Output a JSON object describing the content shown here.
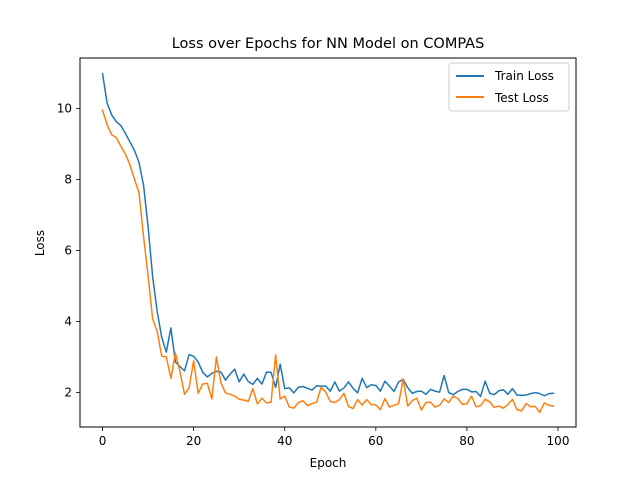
{
  "chart_data": {
    "type": "line",
    "title": "Loss over Epochs for NN Model on COMPAS",
    "xlabel": "Epoch",
    "ylabel": "Loss",
    "xlim": [
      -4.95,
      103.95
    ],
    "ylim": [
      1.03,
      11.42
    ],
    "xticks": [
      0,
      20,
      40,
      60,
      80,
      100
    ],
    "yticks": [
      2,
      4,
      6,
      8,
      10
    ],
    "grid": false,
    "legend_position": "upper right",
    "x": [
      0,
      1,
      2,
      3,
      4,
      5,
      6,
      7,
      8,
      9,
      10,
      11,
      12,
      13,
      14,
      15,
      16,
      17,
      18,
      19,
      20,
      21,
      22,
      23,
      24,
      25,
      26,
      27,
      28,
      29,
      30,
      31,
      32,
      33,
      34,
      35,
      36,
      37,
      38,
      39,
      40,
      41,
      42,
      43,
      44,
      45,
      46,
      47,
      48,
      49,
      50,
      51,
      52,
      53,
      54,
      55,
      56,
      57,
      58,
      59,
      60,
      61,
      62,
      63,
      64,
      65,
      66,
      67,
      68,
      69,
      70,
      71,
      72,
      73,
      74,
      75,
      76,
      77,
      78,
      79,
      80,
      81,
      82,
      83,
      84,
      85,
      86,
      87,
      88,
      89,
      90,
      91,
      92,
      93,
      94,
      95,
      96,
      97,
      98,
      99
    ],
    "series": [
      {
        "name": "Train Loss",
        "color": "#1f77b4",
        "values": [
          10.98,
          10.15,
          9.82,
          9.63,
          9.52,
          9.3,
          9.06,
          8.82,
          8.48,
          7.84,
          6.67,
          5.26,
          4.28,
          3.55,
          3.14,
          3.82,
          2.86,
          2.73,
          2.61,
          3.07,
          3.02,
          2.86,
          2.57,
          2.44,
          2.54,
          2.6,
          2.58,
          2.35,
          2.52,
          2.66,
          2.3,
          2.52,
          2.31,
          2.23,
          2.4,
          2.24,
          2.57,
          2.57,
          2.14,
          2.8,
          2.11,
          2.13,
          1.99,
          2.15,
          2.17,
          2.12,
          2.07,
          2.19,
          2.18,
          2.18,
          2.04,
          2.3,
          2.04,
          2.13,
          2.3,
          2.12,
          1.99,
          2.4,
          2.14,
          2.22,
          2.2,
          2.04,
          2.32,
          2.18,
          2.03,
          2.3,
          2.37,
          2.14,
          1.98,
          2.03,
          2.04,
          1.95,
          2.09,
          2.04,
          2.01,
          2.48,
          2.0,
          1.94,
          2.03,
          2.09,
          2.09,
          2.02,
          2.03,
          1.89,
          2.32,
          1.98,
          1.94,
          2.05,
          2.08,
          1.95,
          2.11,
          1.93,
          1.92,
          1.93,
          1.97,
          2.0,
          1.97,
          1.91,
          1.97,
          1.98
        ]
      },
      {
        "name": "Test Loss",
        "color": "#ff7f0e",
        "values": [
          9.95,
          9.54,
          9.26,
          9.18,
          8.94,
          8.72,
          8.42,
          8.01,
          7.63,
          6.4,
          5.29,
          4.07,
          3.72,
          3.02,
          3.01,
          2.4,
          3.11,
          2.59,
          1.95,
          2.13,
          2.89,
          1.98,
          2.24,
          2.26,
          1.82,
          3.0,
          2.27,
          1.99,
          1.95,
          1.9,
          1.81,
          1.79,
          1.75,
          2.11,
          1.68,
          1.84,
          1.71,
          1.73,
          3.06,
          1.82,
          1.9,
          1.59,
          1.56,
          1.72,
          1.77,
          1.63,
          1.69,
          1.73,
          2.15,
          2.01,
          1.75,
          1.72,
          1.8,
          1.98,
          1.61,
          1.55,
          1.8,
          1.65,
          1.8,
          1.66,
          1.65,
          1.52,
          1.83,
          1.59,
          1.64,
          1.69,
          2.38,
          1.62,
          1.77,
          1.84,
          1.51,
          1.72,
          1.73,
          1.59,
          1.64,
          1.82,
          1.72,
          1.9,
          1.83,
          1.67,
          1.68,
          1.9,
          1.6,
          1.63,
          1.81,
          1.74,
          1.58,
          1.62,
          1.56,
          1.66,
          1.81,
          1.52,
          1.48,
          1.69,
          1.6,
          1.61,
          1.44,
          1.71,
          1.64,
          1.62
        ]
      }
    ]
  }
}
